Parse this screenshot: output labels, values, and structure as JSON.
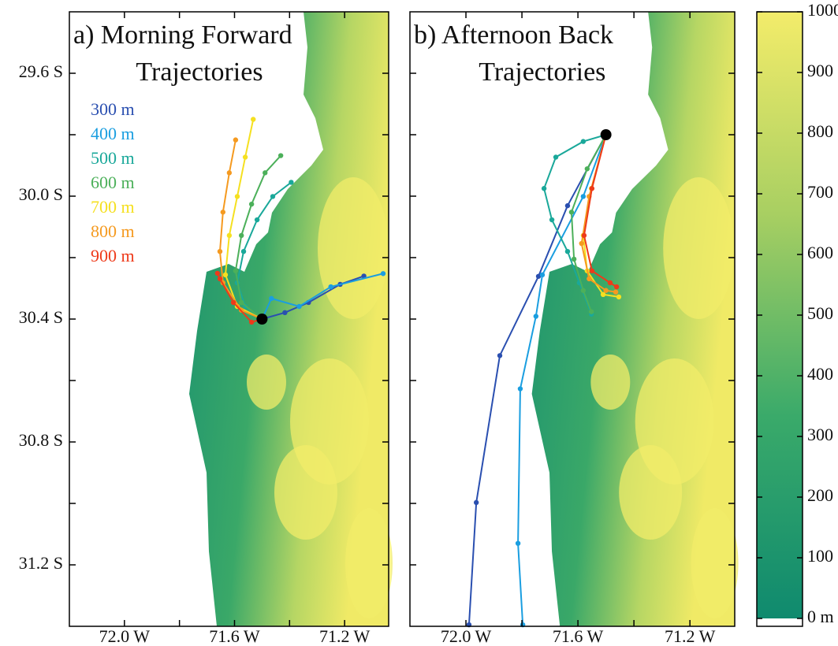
{
  "chart_data": [
    {
      "type": "line",
      "title": [
        "a) Morning Forward",
        "Trajectories"
      ],
      "xlim": [
        -72.2,
        -71.04
      ],
      "ylim": [
        -29.4,
        -31.4
      ],
      "xticks": [
        {
          "value": -72.0,
          "label": "72.0 W"
        },
        {
          "value": -71.6,
          "label": "71.6 W"
        },
        {
          "value": -71.2,
          "label": "71.2 W"
        }
      ],
      "xminorticks": [
        -71.8,
        -71.4
      ],
      "yticks": [
        {
          "value": -29.6,
          "label": "29.6 S"
        },
        {
          "value": -30.0,
          "label": "30.0 S"
        },
        {
          "value": -30.4,
          "label": "30.4 S"
        },
        {
          "value": -30.8,
          "label": "30.8 S"
        },
        {
          "value": -31.2,
          "label": "31.2 S"
        }
      ],
      "yminorticks": [
        -29.8,
        -30.2,
        -30.6,
        -31.0
      ],
      "start": {
        "x": -71.5,
        "y": -30.4
      },
      "series": [
        {
          "name": "300 m",
          "color": "#2a4fb0",
          "x": [
            -71.5,
            -71.417,
            -71.331,
            -71.216,
            -71.13
          ],
          "y": [
            -30.4,
            -30.379,
            -30.346,
            -30.287,
            -30.26
          ]
        },
        {
          "name": "400 m",
          "color": "#1a9ee0",
          "x": [
            -71.5,
            -71.466,
            -71.365,
            -71.25,
            -71.06
          ],
          "y": [
            -30.4,
            -30.333,
            -30.359,
            -30.295,
            -30.252
          ]
        },
        {
          "name": "500 m",
          "color": "#1aa89a",
          "x": [
            -71.5,
            -71.561,
            -71.59,
            -71.567,
            -71.518,
            -71.461,
            -71.394
          ],
          "y": [
            -30.4,
            -30.359,
            -30.282,
            -30.18,
            -30.077,
            -30.001,
            -29.955
          ]
        },
        {
          "name": "600 m",
          "color": "#4cb05a",
          "x": [
            -71.5,
            -71.575,
            -71.596,
            -71.575,
            -71.538,
            -71.489,
            -71.432
          ],
          "y": [
            -30.4,
            -30.346,
            -30.243,
            -30.128,
            -30.026,
            -29.924,
            -29.868
          ]
        },
        {
          "name": "700 m",
          "color": "#f5e020",
          "x": [
            -71.5,
            -71.59,
            -71.633,
            -71.619,
            -71.59,
            -71.561,
            -71.532
          ],
          "y": [
            -30.4,
            -30.359,
            -30.256,
            -30.128,
            -30.001,
            -29.873,
            -29.75
          ]
        },
        {
          "name": "800 m",
          "color": "#f59a20",
          "x": [
            -71.5,
            -71.575,
            -71.642,
            -71.653,
            -71.642,
            -71.619,
            -71.596
          ],
          "y": [
            -30.4,
            -30.371,
            -30.282,
            -30.18,
            -30.052,
            -29.924,
            -29.817
          ]
        },
        {
          "name": "900 m",
          "color": "#ee3a1a",
          "x": [
            -71.5,
            -71.538,
            -71.604,
            -71.653,
            -71.662
          ],
          "y": [
            -30.4,
            -30.41,
            -30.346,
            -30.269,
            -30.251
          ]
        }
      ]
    },
    {
      "type": "line",
      "title": [
        "b) Afternoon Back",
        "Trajectories"
      ],
      "xlim": [
        -72.2,
        -71.04
      ],
      "ylim": [
        -29.4,
        -31.4
      ],
      "xticks": [
        {
          "value": -72.0,
          "label": "72.0 W"
        },
        {
          "value": -71.6,
          "label": "71.6 W"
        },
        {
          "value": -71.2,
          "label": "71.2 W"
        }
      ],
      "xminorticks": [
        -71.8,
        -71.4
      ],
      "yminorticks": [
        -29.6,
        -29.8,
        -30.0,
        -30.2,
        -30.4,
        -30.6,
        -30.8,
        -31.0,
        -31.2
      ],
      "start": {
        "x": -71.5,
        "y": -29.8
      },
      "series": [
        {
          "color": "#2a4fb0",
          "x": [
            -71.989,
            -71.963,
            -71.879,
            -71.741,
            -71.637,
            -71.5
          ],
          "y": [
            -31.395,
            -30.997,
            -30.519,
            -30.261,
            -30.031,
            -29.8
          ]
        },
        {
          "color": "#1a9ee0",
          "x": [
            -71.797,
            -71.814,
            -71.806,
            -71.75,
            -71.727,
            -71.581,
            -71.5
          ],
          "y": [
            -31.395,
            -31.13,
            -30.627,
            -30.391,
            -30.256,
            -30.001,
            -29.8
          ]
        },
        {
          "color": "#1aa89a",
          "x": [
            -71.5,
            -71.581,
            -71.679,
            -71.721,
            -71.693,
            -71.637,
            -71.595,
            -71.552
          ],
          "y": [
            -29.8,
            -29.822,
            -29.873,
            -29.975,
            -30.077,
            -30.18,
            -30.282,
            -30.384
          ]
        },
        {
          "color": "#4cb05a",
          "x": [
            -71.5,
            -71.567,
            -71.623,
            -71.614,
            -71.581,
            -71.552
          ],
          "y": [
            -29.8,
            -29.911,
            -30.052,
            -30.205,
            -30.307,
            -30.376
          ]
        },
        {
          "color": "#f5e020",
          "x": [
            -71.5,
            -71.552,
            -71.581,
            -71.567,
            -71.51,
            -71.454
          ],
          "y": [
            -29.8,
            -29.975,
            -30.128,
            -30.243,
            -30.32,
            -30.328
          ]
        },
        {
          "color": "#f59a20",
          "x": [
            -71.5,
            -71.56,
            -71.587,
            -71.56,
            -71.5,
            -71.465
          ],
          "y": [
            -29.8,
            -30.001,
            -30.154,
            -30.269,
            -30.307,
            -30.312
          ]
        },
        {
          "color": "#ee3a1a",
          "x": [
            -71.5,
            -71.55,
            -71.578,
            -71.55,
            -71.485,
            -71.462
          ],
          "y": [
            -29.8,
            -29.975,
            -30.128,
            -30.243,
            -30.282,
            -30.295
          ]
        }
      ]
    },
    {
      "type": "colorbar",
      "colors": [
        "#0f8a6e",
        "#3aaa6a",
        "#a8cf62",
        "#f3ec6a"
      ],
      "ylim": [
        0,
        1000
      ],
      "yticks": [
        {
          "value": 0,
          "label": "0 m"
        },
        100,
        200,
        300,
        400,
        500,
        600,
        700,
        800,
        900,
        1000
      ]
    }
  ]
}
